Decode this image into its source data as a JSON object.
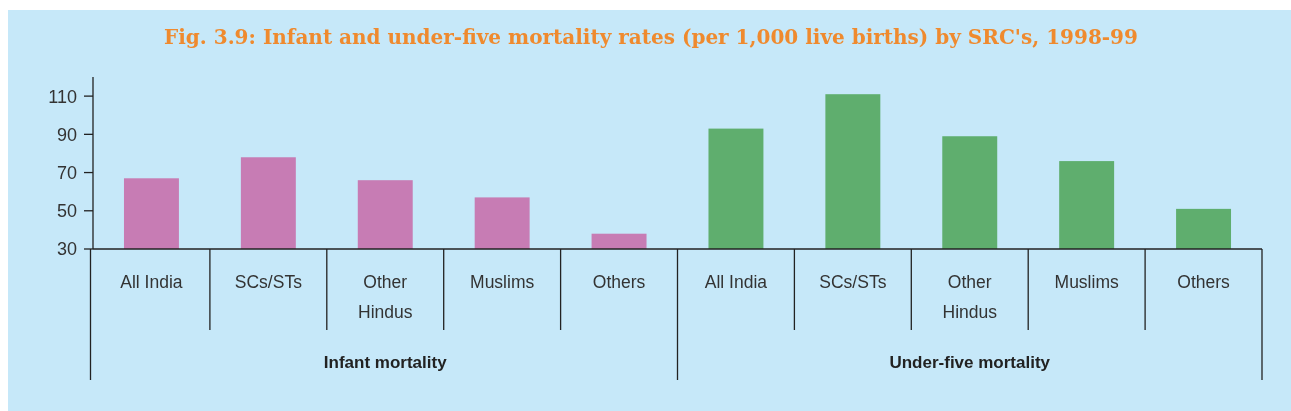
{
  "chart_data": {
    "type": "bar",
    "title": "Fig. 3.9: Infant and under-five mortality rates (per 1,000 live births) by SRC's, 1998-99",
    "categories": [
      "All India",
      "SCs/STs",
      "Other Hindus",
      "Muslims",
      "Others",
      "All India",
      "SCs/STs",
      "Other Hindus",
      "Muslims",
      "Others"
    ],
    "series": [
      {
        "color": "#c77cb4",
        "values": [
          67,
          78,
          66,
          57,
          38,
          null,
          null,
          null,
          null,
          null
        ]
      },
      {
        "color": "#5fae6e",
        "values": [
          null,
          null,
          null,
          null,
          null,
          93,
          111,
          89,
          76,
          51
        ]
      }
    ],
    "annotations": [
      "Infant mortality",
      "Under-five mortality"
    ],
    "ylim": [
      30,
      120
    ],
    "yticks": [
      30,
      50,
      70,
      90,
      110
    ]
  }
}
